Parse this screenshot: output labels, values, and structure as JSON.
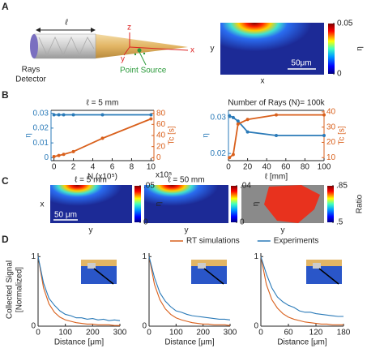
{
  "panel_labels": [
    "A",
    "B",
    "C",
    "D"
  ],
  "diagram": {
    "length_label": "ℓ",
    "detector_label": [
      "Rays",
      "Detector"
    ],
    "axes": [
      "z",
      "y",
      "x"
    ],
    "source_label": "Point Source"
  },
  "heatmap_a": {
    "y_label": "y",
    "x_label": "x",
    "scale_bar": "50μm",
    "colorbar_label": "η",
    "colorbar_lim": [
      0,
      0.05
    ],
    "colorbar_ticks": [
      0,
      0.05
    ]
  },
  "heatmaps_c": [
    {
      "title": "ℓ = 5 mm",
      "x_label": "x",
      "y_label": "y",
      "scale_bar": "50 μm",
      "colorbar_label": "η",
      "colorbar_lim": [
        0,
        0.05
      ],
      "colorbar_ticks": [
        0,
        {
          "value": 0.05,
          "label": ".05"
        }
      ]
    },
    {
      "title": "ℓ = 50 mm",
      "y_label": "y",
      "colorbar_label": "η",
      "colorbar_lim": [
        0,
        0.04
      ],
      "colorbar_ticks": [
        0,
        {
          "value": 0.04,
          "label": ".04"
        }
      ]
    },
    {
      "y_label": "y",
      "colorbar_label": "Ratio",
      "colorbar_lim": [
        0.5,
        0.85
      ],
      "colorbar_ticks": [
        {
          "value": 0.5,
          "label": ".5"
        },
        {
          "value": 0.85,
          "label": ".85"
        }
      ]
    }
  ],
  "panel_d": {
    "y_label": [
      "Collected Signal",
      "[Normalized]"
    ]
  },
  "chart_data": [
    {
      "type": "line",
      "title": "ℓ = 5 mm",
      "x_label": "N (x10⁵)",
      "x_multiplier": "x10⁵",
      "y_label": "η",
      "y2_label": "Tc [s]",
      "x": [
        0,
        0.5,
        1,
        2,
        5,
        10
      ],
      "xlim": [
        -0.3,
        10.3
      ],
      "xticks": [
        0,
        2,
        4,
        6,
        8,
        10
      ],
      "ylim": [
        -0.002,
        0.032
      ],
      "yticks": [
        0,
        0.01,
        0.02,
        0.03
      ],
      "y2lim": [
        -5.33,
        85.33
      ],
      "y2ticks": [
        0,
        20,
        40,
        60,
        80
      ],
      "series": [
        {
          "color": "#2a7ab8",
          "values": [
            0.029,
            0.029,
            0.029,
            0.029,
            0.029,
            0.029
          ]
        },
        {
          "color": "#d9601c",
          "axis": "y2",
          "values": [
            2,
            4,
            6,
            11,
            35,
            70
          ]
        }
      ]
    },
    {
      "type": "line",
      "title": "Number of Rays (N)= 100k",
      "x_label": "ℓ [mm]",
      "y_label": "η",
      "y2_label": "Tc [s]",
      "x": [
        1,
        5,
        10,
        20,
        50,
        100
      ],
      "xlim": [
        0,
        100
      ],
      "xticks": [
        0,
        20,
        40,
        60,
        80,
        100
      ],
      "ylim": [
        0.018,
        0.032
      ],
      "yticks": [
        0.02,
        0.03
      ],
      "y2lim": [
        8,
        41
      ],
      "y2ticks": [
        10,
        20,
        30,
        40
      ],
      "series": [
        {
          "color": "#2a7ab8",
          "values": [
            0.0305,
            0.03,
            0.029,
            0.026,
            0.025,
            0.025
          ]
        },
        {
          "color": "#d9601c",
          "axis": "y2",
          "values": [
            10,
            12,
            32,
            35,
            38,
            38
          ]
        }
      ]
    },
    {
      "type": "line",
      "x_label": "Distance [μm]",
      "x": [
        0,
        20,
        40,
        60,
        80,
        100,
        120,
        140,
        160,
        180,
        200,
        220,
        240,
        260,
        280,
        300
      ],
      "xlim": [
        0,
        300
      ],
      "xticks": [
        0,
        100,
        200,
        300
      ],
      "ylim": [
        0,
        1.05
      ],
      "yticks": [
        0,
        1
      ],
      "series": [
        {
          "name": "RT simulations",
          "color": "#d9601c",
          "values": [
            1.0,
            0.55,
            0.32,
            0.2,
            0.13,
            0.09,
            0.07,
            0.05,
            0.04,
            0.03,
            0.03,
            0.02,
            0.02,
            0.02,
            0.01,
            0.01
          ]
        },
        {
          "name": "Experiments",
          "color": "#2a7ab8",
          "values": [
            1.0,
            0.62,
            0.4,
            0.3,
            0.22,
            0.17,
            0.15,
            0.12,
            0.12,
            0.1,
            0.11,
            0.09,
            0.1,
            0.08,
            0.09,
            0.08
          ]
        }
      ]
    },
    {
      "type": "line",
      "x_label": "Distance [μm]",
      "x": [
        0,
        20,
        40,
        60,
        80,
        100,
        120,
        140,
        160,
        180,
        200,
        220,
        240,
        260,
        280,
        300
      ],
      "xlim": [
        0,
        300
      ],
      "xticks": [
        0,
        100,
        200,
        300
      ],
      "ylim": [
        0,
        1.05
      ],
      "yticks": [
        0,
        1
      ],
      "series": [
        {
          "color": "#d9601c",
          "values": [
            1.0,
            0.6,
            0.38,
            0.25,
            0.17,
            0.12,
            0.09,
            0.07,
            0.05,
            0.04,
            0.03,
            0.03,
            0.02,
            0.02,
            0.02,
            0.01
          ]
        },
        {
          "color": "#2a7ab8",
          "values": [
            1.0,
            0.7,
            0.48,
            0.36,
            0.28,
            0.22,
            0.2,
            0.17,
            0.15,
            0.14,
            0.13,
            0.12,
            0.11,
            0.1,
            0.1,
            0.09
          ]
        }
      ]
    },
    {
      "type": "line",
      "x_label": "Distance [μm]",
      "x": [
        0,
        12,
        24,
        36,
        48,
        60,
        72,
        84,
        96,
        108,
        120,
        132,
        144,
        156,
        168,
        180
      ],
      "xlim": [
        0,
        180
      ],
      "xticks": [
        0,
        60,
        120,
        180
      ],
      "ylim": [
        0,
        1.05
      ],
      "yticks": [
        0,
        1
      ],
      "series": [
        {
          "color": "#d9601c",
          "values": [
            1.0,
            0.6,
            0.38,
            0.26,
            0.18,
            0.13,
            0.1,
            0.08,
            0.06,
            0.05,
            0.04,
            0.03,
            0.03,
            0.02,
            0.02,
            0.02
          ]
        },
        {
          "color": "#2a7ab8",
          "values": [
            1.0,
            0.75,
            0.55,
            0.42,
            0.35,
            0.3,
            0.27,
            0.22,
            0.2,
            0.2,
            0.18,
            0.17,
            0.16,
            0.15,
            0.14,
            0.14
          ]
        }
      ]
    }
  ]
}
